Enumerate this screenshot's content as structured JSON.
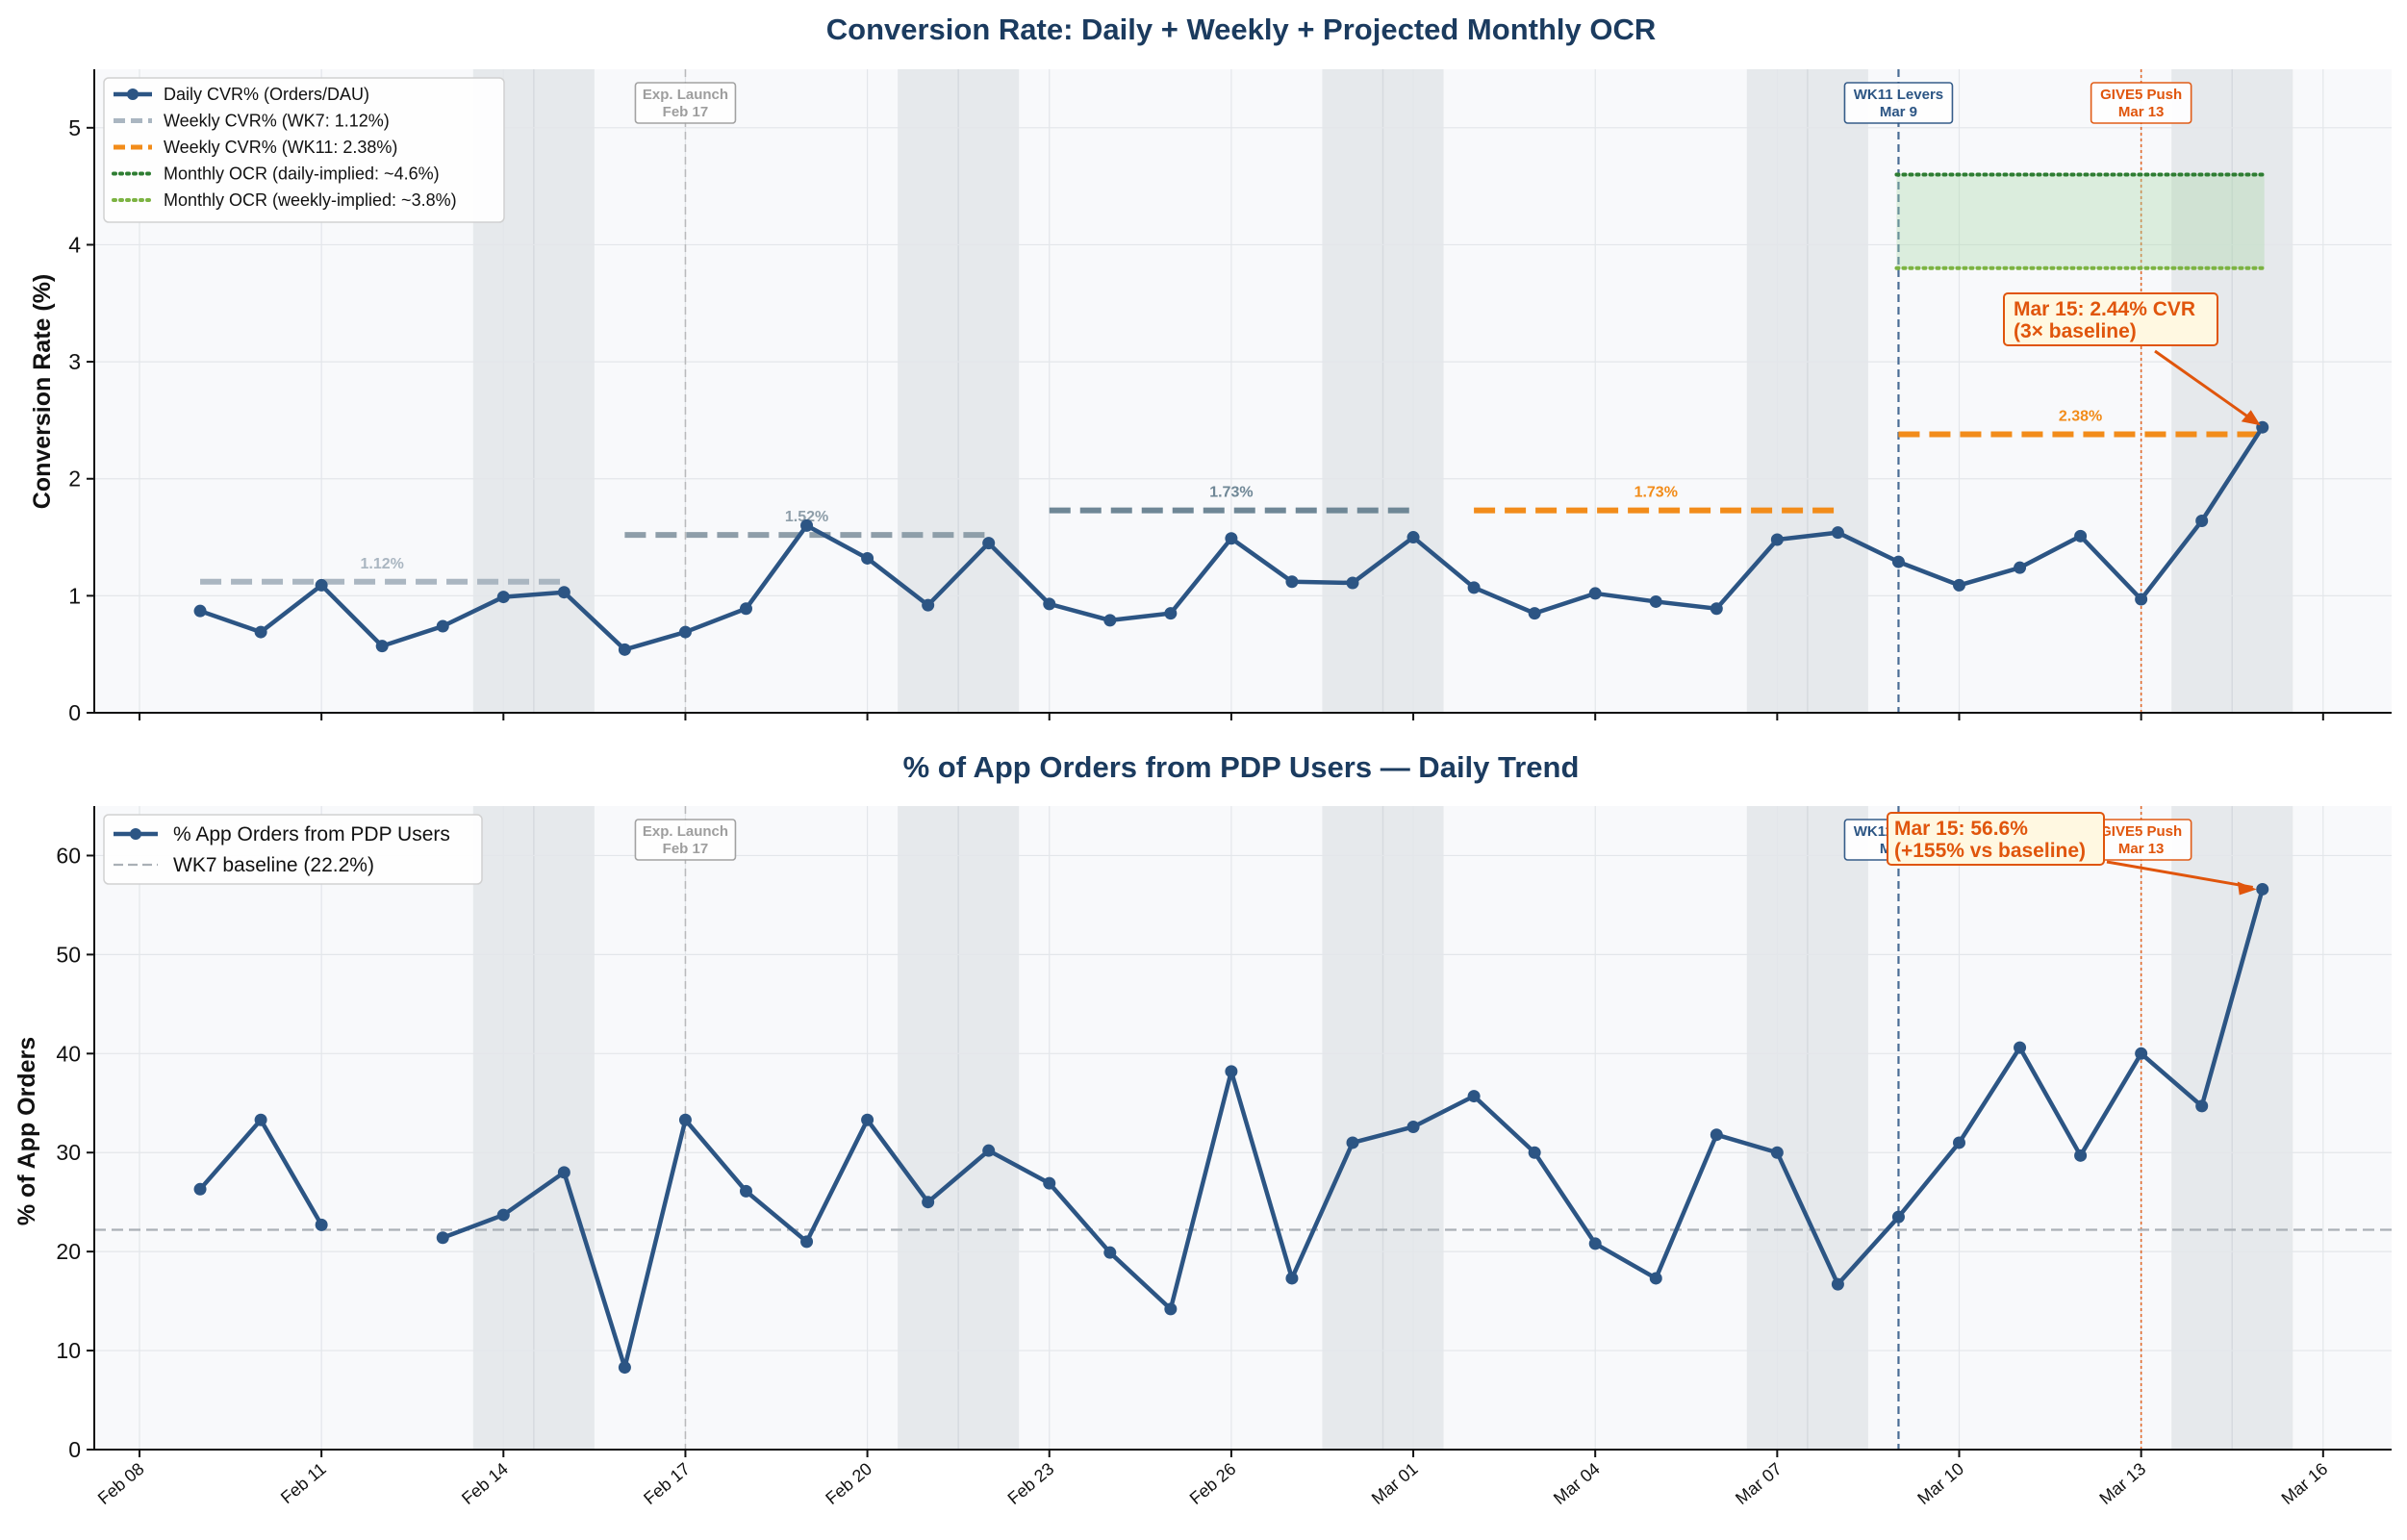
{
  "colors": {
    "main": "#2c5584",
    "wk7": "#aab6c1",
    "wk11": "#f28c1a",
    "ocr_daily": "#2e7d32",
    "ocr_weekly": "#7cb342",
    "ann": "#e0550c",
    "event_exp": "#9e9e9e",
    "event_wk11": "#2c5584",
    "event_give5": "#e0550c",
    "weekend": "#e6e9ec",
    "plot_bg": "#f8f9fb",
    "grid": "#e3e6ea"
  },
  "x_ticks": [
    "Feb 08",
    "Feb 11",
    "Feb 14",
    "Feb 17",
    "Feb 20",
    "Feb 23",
    "Feb 26",
    "Mar 01",
    "Mar 04",
    "Mar 07",
    "Mar 10",
    "Mar 13",
    "Mar 16"
  ],
  "events": [
    {
      "line1": "Exp. Launch",
      "line2": "Feb 17",
      "day": 9,
      "color": "#9e9e9e"
    },
    {
      "line1": "WK11 Levers",
      "line2": "Mar 9",
      "day": 29,
      "color": "#2c5584"
    },
    {
      "line1": "GIVE5 Push",
      "line2": "Mar 13",
      "day": 33,
      "color": "#e0550c"
    }
  ],
  "weekends": [
    [
      5.5,
      7.5
    ],
    [
      12.5,
      14.5
    ],
    [
      19.5,
      21.5
    ],
    [
      26.5,
      28.5
    ],
    [
      33.5,
      35.5
    ]
  ],
  "chart_data": [
    {
      "type": "line",
      "title": "Conversion Rate: Daily + Weekly + Projected Monthly OCR",
      "xlabel": "",
      "ylabel": "Conversion Rate (%)",
      "ylim": [
        0,
        5.5
      ],
      "yticks": [
        "0",
        "1",
        "2",
        "3",
        "4",
        "5"
      ],
      "x_start": "Feb 08",
      "series": [
        {
          "name": "Daily CVR% (Orders/DAU)",
          "start_day": 1,
          "values": [
            0.87,
            0.69,
            1.09,
            0.57,
            0.74,
            0.99,
            1.03,
            0.54,
            0.69,
            0.89,
            1.6,
            1.32,
            0.92,
            1.45,
            0.93,
            0.79,
            0.85,
            1.49,
            1.12,
            1.11,
            1.5,
            1.07,
            0.85,
            1.02,
            0.95,
            0.89,
            1.48,
            1.54,
            1.29,
            1.09,
            1.24,
            1.51,
            0.97,
            1.64,
            2.44
          ]
        }
      ],
      "weekly_segments": [
        {
          "x0": 1,
          "x1": 7,
          "value": 1.12,
          "label": "1.12%",
          "color": "#aab6c1"
        },
        {
          "x0": 8,
          "x1": 14,
          "value": 1.52,
          "label": "1.52%",
          "color": "#8e9ea9"
        },
        {
          "x0": 15,
          "x1": 21,
          "value": 1.73,
          "label": "1.73%",
          "color": "#6f8796"
        },
        {
          "x0": 22,
          "x1": 28,
          "value": 1.73,
          "label": "1.73%",
          "color": "#f28c1a"
        },
        {
          "x0": 29,
          "x1": 35,
          "value": 2.38,
          "label": "2.38%",
          "color": "#f28c1a"
        }
      ],
      "ocr_band": {
        "x0": 29,
        "x1": 35,
        "daily_implied": 4.6,
        "weekly_implied": 3.8
      },
      "legend": [
        {
          "label": "Daily CVR% (Orders/DAU)",
          "kind": "marker",
          "color": "#2c5584"
        },
        {
          "label": "Weekly CVR% (WK7: 1.12%)",
          "kind": "dash",
          "color": "#aab6c1"
        },
        {
          "label": "Weekly CVR% (WK11: 2.38%)",
          "kind": "dash",
          "color": "#f28c1a"
        },
        {
          "label": "Monthly OCR (daily-implied: ~4.6%)",
          "kind": "dot",
          "color": "#2e7d32"
        },
        {
          "label": "Monthly OCR (weekly-implied: ~3.8%)",
          "kind": "dot",
          "color": "#7cb342"
        }
      ],
      "annotation": {
        "line1": "Mar 15: 2.44% CVR",
        "line2": "(3× baseline)",
        "x": 35,
        "y": 2.44
      }
    },
    {
      "type": "line",
      "title": "% of App Orders from PDP Users — Daily Trend",
      "xlabel": "",
      "ylabel": "% of App Orders",
      "ylim": [
        0,
        65
      ],
      "yticks": [
        "0",
        "10",
        "20",
        "30",
        "40",
        "50",
        "60"
      ],
      "x_start": "Feb 08",
      "series": [
        {
          "name": "% App Orders from PDP Users",
          "start_day": 1,
          "values": [
            26.3,
            33.3,
            22.7,
            null,
            21.4,
            23.7,
            28.0,
            8.3,
            33.3,
            26.1,
            21.0,
            33.3,
            25.0,
            30.2,
            26.9,
            19.9,
            14.2,
            38.2,
            17.3,
            31.0,
            32.6,
            35.7,
            30.0,
            20.8,
            17.3,
            31.8,
            30.0,
            16.7,
            23.5,
            31.0,
            40.6,
            29.7,
            40.0,
            34.7,
            56.6
          ]
        }
      ],
      "baseline": {
        "label": "WK7 baseline (22.2%)",
        "value": 22.2
      },
      "legend": [
        {
          "label": "% App Orders from PDP Users",
          "kind": "marker",
          "color": "#2c5584"
        },
        {
          "label": "WK7 baseline (22.2%)",
          "kind": "dash",
          "color": "#aab0b6"
        }
      ],
      "annotation": {
        "line1": "Mar 15: 56.6%",
        "line2": "(+155% vs baseline)",
        "x": 35,
        "y": 56.6
      }
    }
  ]
}
